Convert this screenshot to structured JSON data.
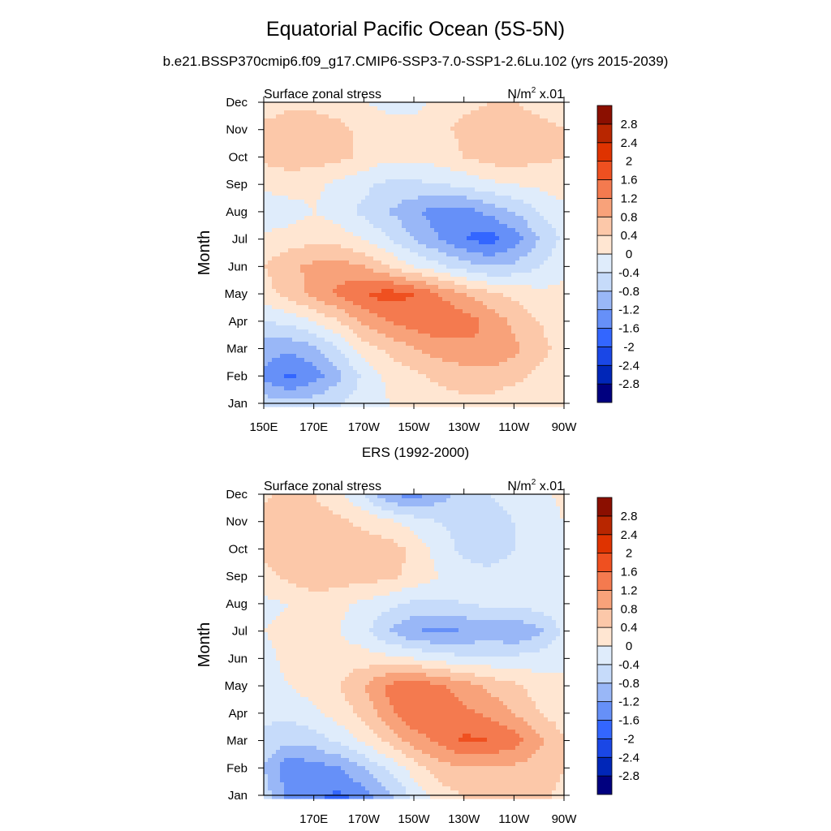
{
  "title": "Equatorial Pacific Ocean (5S-5N)",
  "subtitle": "b.e21.BSSP370cmip6.f09_g17.CMIP6-SSP3-7.0-SSP1-2.6Lu.102 (yrs 2015-2039)",
  "colors": [
    "#00007f",
    "#0026b8",
    "#1a47e6",
    "#3366ff",
    "#6690f8",
    "#99b7f7",
    "#c6dbfa",
    "#dfecfb",
    "#ffe6d2",
    "#fcc8a9",
    "#f8a27a",
    "#f47a4f",
    "#ef5020",
    "#df3300",
    "#b82600",
    "#8b0f00"
  ],
  "chart_data": [
    {
      "type": "heatmap",
      "panel_title": "",
      "left_label": "Surface zonal stress",
      "right_label": "N/m",
      "right_label_sup": "2",
      "right_label_suffix": " x.01",
      "ylabel": "Month",
      "x_ticks": [
        "150E",
        "170E",
        "170W",
        "150W",
        "130W",
        "110W",
        "90W"
      ],
      "y_ticks": [
        "Jan",
        "Feb",
        "Mar",
        "Apr",
        "May",
        "Jun",
        "Jul",
        "Aug",
        "Sep",
        "Oct",
        "Nov",
        "Dec"
      ],
      "colorbar_labels": [
        "-2.8",
        "-2.4",
        "-2",
        "-1.6",
        "-1.2",
        "-0.8",
        "-0.4",
        "0",
        "0.4",
        "0.8",
        "1.2",
        "1.6",
        "2",
        "2.4",
        "2.8"
      ],
      "lon": [
        150,
        160,
        170,
        180,
        190,
        200,
        210,
        220,
        230,
        240,
        250,
        260,
        270
      ],
      "months": [
        "Jan",
        "Feb",
        "Mar",
        "Apr",
        "May",
        "Jun",
        "Jul",
        "Aug",
        "Sep",
        "Oct",
        "Nov",
        "Dec"
      ],
      "values": [
        [
          -0.6,
          -0.7,
          -0.6,
          -0.4,
          -0.2,
          0.0,
          0.1,
          0.2,
          0.3,
          0.3,
          0.2,
          0.2,
          0.1
        ],
        [
          -1.3,
          -1.7,
          -1.4,
          -0.9,
          -0.3,
          0.1,
          0.3,
          0.5,
          0.6,
          0.6,
          0.5,
          0.3,
          0.2
        ],
        [
          -1.0,
          -1.1,
          -0.9,
          -0.4,
          0.2,
          0.5,
          0.8,
          1.0,
          1.1,
          1.2,
          0.9,
          0.5,
          0.3
        ],
        [
          -0.4,
          -0.3,
          0.0,
          0.4,
          0.9,
          1.2,
          1.4,
          1.6,
          1.4,
          1.1,
          0.7,
          0.4,
          0.2
        ],
        [
          0.2,
          0.6,
          0.9,
          1.3,
          1.6,
          1.8,
          1.6,
          1.2,
          0.8,
          0.5,
          0.3,
          0.1,
          0.1
        ],
        [
          0.4,
          0.7,
          0.9,
          1.0,
          0.8,
          0.4,
          0.0,
          -0.3,
          -0.6,
          -0.8,
          -0.7,
          -0.4,
          -0.1
        ],
        [
          0.1,
          0.2,
          0.3,
          0.2,
          0.0,
          -0.4,
          -0.8,
          -1.2,
          -1.6,
          -1.8,
          -1.4,
          -0.8,
          -0.3
        ],
        [
          -0.3,
          -0.2,
          0.0,
          -0.2,
          -0.5,
          -0.8,
          -1.1,
          -1.4,
          -1.4,
          -1.1,
          -0.8,
          -0.4,
          -0.1
        ],
        [
          0.1,
          0.2,
          0.1,
          -0.1,
          -0.3,
          -0.5,
          -0.5,
          -0.4,
          -0.3,
          -0.1,
          0.0,
          0.1,
          0.2
        ],
        [
          0.5,
          0.6,
          0.6,
          0.5,
          0.3,
          0.1,
          0.1,
          0.2,
          0.4,
          0.6,
          0.6,
          0.5,
          0.4
        ],
        [
          0.5,
          0.6,
          0.6,
          0.5,
          0.3,
          0.1,
          0.1,
          0.3,
          0.5,
          0.6,
          0.6,
          0.5,
          0.4
        ],
        [
          0.2,
          0.3,
          0.3,
          0.2,
          0.0,
          -0.1,
          -0.1,
          0.1,
          0.3,
          0.4,
          0.4,
          0.3,
          0.2
        ]
      ]
    },
    {
      "type": "heatmap",
      "panel_title": "ERS (1992-2000)",
      "left_label": "Surface zonal stress",
      "right_label": "N/m",
      "right_label_sup": "2",
      "right_label_suffix": " x.01",
      "ylabel": "Month",
      "x_ticks": [
        "170E",
        "170W",
        "150W",
        "130W",
        "110W",
        "90W"
      ],
      "y_ticks": [
        "Jan",
        "Feb",
        "Mar",
        "Apr",
        "May",
        "Jun",
        "Jul",
        "Aug",
        "Sep",
        "Oct",
        "Nov",
        "Dec"
      ],
      "colorbar_labels": [
        "-2.8",
        "-2.4",
        "-2",
        "-1.6",
        "-1.2",
        "-0.8",
        "-0.4",
        "0",
        "0.4",
        "0.8",
        "1.2",
        "1.6",
        "2",
        "2.4",
        "2.8"
      ],
      "lon": [
        150,
        160,
        170,
        180,
        190,
        200,
        210,
        220,
        230,
        240,
        250,
        260,
        270
      ],
      "months": [
        "Jan",
        "Feb",
        "Mar",
        "Apr",
        "May",
        "Jun",
        "Jul",
        "Aug",
        "Sep",
        "Oct",
        "Nov",
        "Dec"
      ],
      "values": [
        [
          -0.6,
          -1.3,
          -1.5,
          -1.7,
          -1.4,
          -0.9,
          -0.3,
          0.2,
          0.4,
          0.5,
          0.6,
          0.5,
          0.3
        ],
        [
          -0.8,
          -1.5,
          -1.4,
          -1.2,
          -0.8,
          -0.3,
          0.2,
          0.6,
          0.8,
          0.8,
          0.7,
          0.6,
          0.4
        ],
        [
          -0.5,
          -0.7,
          -0.6,
          -0.3,
          0.1,
          0.5,
          1.0,
          1.3,
          1.7,
          1.6,
          1.4,
          0.9,
          0.4
        ],
        [
          -0.3,
          -0.3,
          -0.1,
          0.2,
          0.5,
          1.1,
          1.5,
          1.6,
          1.3,
          1.1,
          0.8,
          0.4,
          0.2
        ],
        [
          -0.2,
          0.0,
          0.2,
          0.4,
          0.8,
          1.3,
          1.5,
          1.3,
          1.0,
          0.7,
          0.5,
          0.2,
          0.1
        ],
        [
          -0.1,
          0.1,
          0.2,
          0.2,
          0.2,
          0.1,
          0.0,
          -0.2,
          -0.3,
          -0.3,
          -0.3,
          -0.2,
          -0.1
        ],
        [
          0.0,
          0.1,
          0.1,
          0.0,
          -0.3,
          -0.8,
          -1.2,
          -1.3,
          -1.2,
          -1.1,
          -1.2,
          -0.9,
          -0.3
        ],
        [
          -0.1,
          0.0,
          0.2,
          0.1,
          -0.1,
          -0.3,
          -0.5,
          -0.5,
          -0.4,
          -0.3,
          -0.3,
          -0.2,
          -0.1
        ],
        [
          0.3,
          0.5,
          0.7,
          0.6,
          0.6,
          0.5,
          0.3,
          0.0,
          -0.2,
          -0.3,
          -0.2,
          -0.1,
          0.0
        ],
        [
          0.5,
          0.6,
          0.8,
          0.7,
          0.6,
          0.6,
          0.3,
          -0.2,
          -0.5,
          -0.6,
          -0.4,
          -0.2,
          0.0
        ],
        [
          0.6,
          0.7,
          0.6,
          0.5,
          0.3,
          0.1,
          -0.2,
          -0.4,
          -0.5,
          -0.5,
          -0.4,
          -0.2,
          0.0
        ],
        [
          0.3,
          0.5,
          0.4,
          0.1,
          -0.4,
          -1.2,
          -1.4,
          -1.0,
          -0.6,
          -0.4,
          -0.3,
          -0.1,
          0.1
        ]
      ]
    }
  ]
}
